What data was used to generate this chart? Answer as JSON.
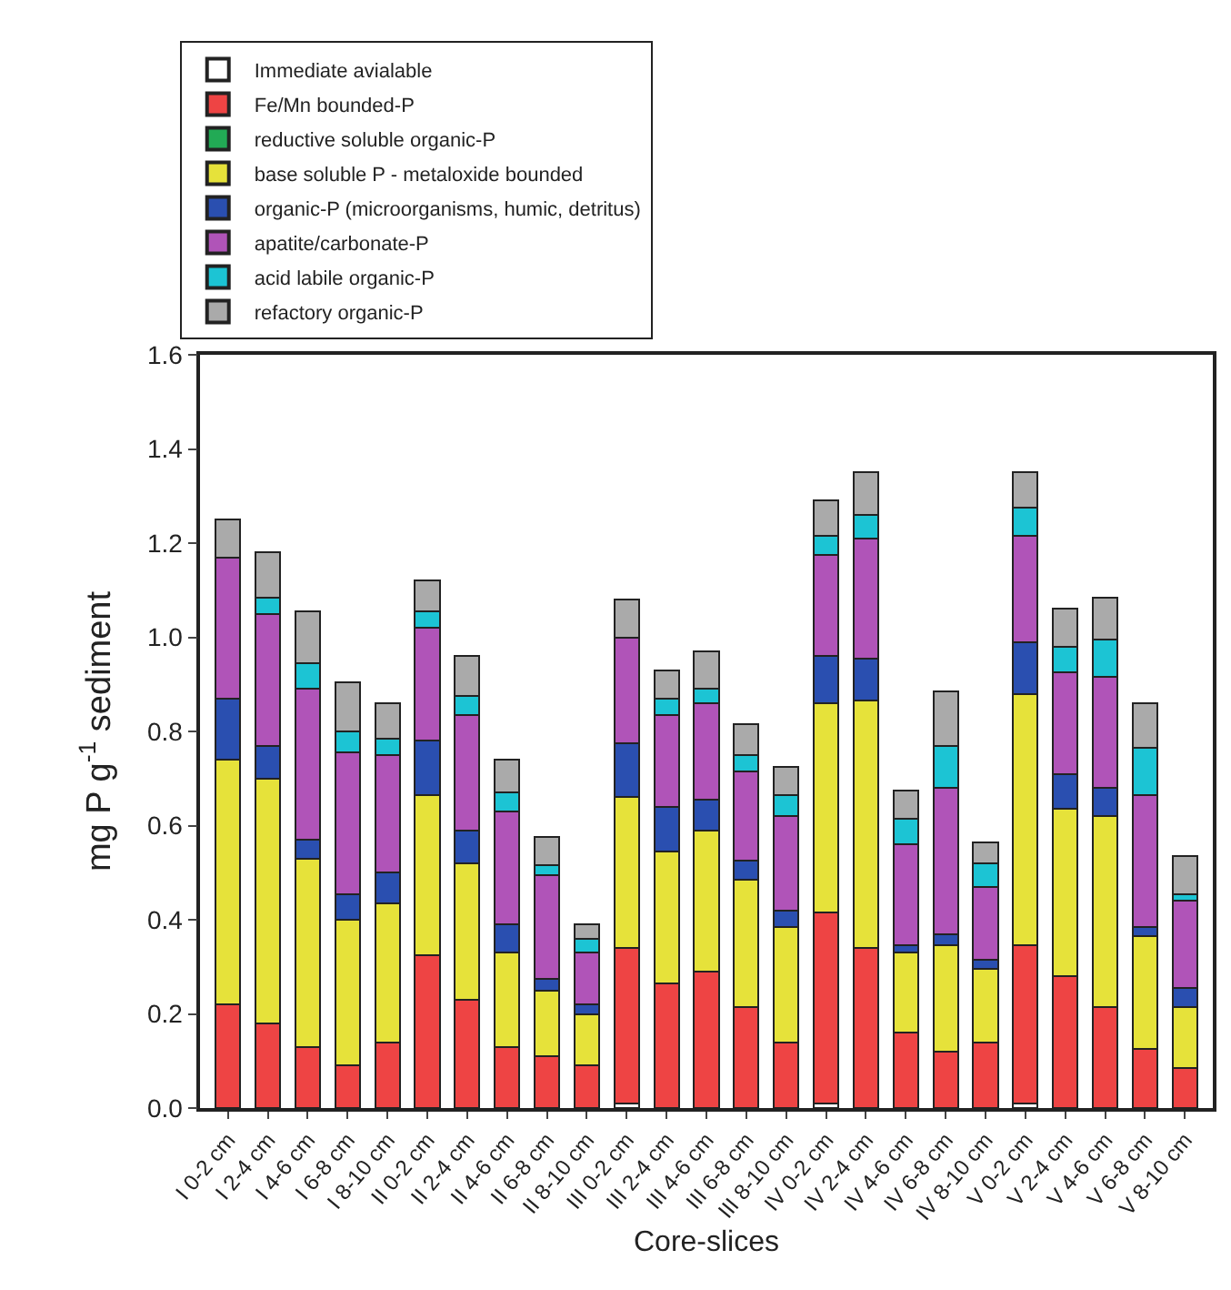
{
  "chart_data": {
    "type": "bar",
    "stacked": true,
    "xlabel": "Core-slices",
    "ylabel": "mg P g$^{-1}$ sediment",
    "categories": [
      "I 0-2 cm",
      "I 2-4 cm",
      "I 4-6 cm",
      "I 6-8 cm",
      "I 8-10 cm",
      "II 0-2 cm",
      "II 2-4 cm",
      "II 4-6 cm",
      "II 6-8 cm",
      "II 8-10 cm",
      "III 0-2 cm",
      "III 2-4 cm",
      "III 4-6 cm",
      "III 6-8 cm",
      "III 8-10 cm",
      "IV 0-2 cm",
      "IV 2-4 cm",
      "IV 4-6 cm",
      "IV 6-8 cm",
      "IV 8-10 cm",
      "V 0-2 cm",
      "V 2-4 cm",
      "V 4-6 cm",
      "V 6-8 cm",
      "V 8-10 cm"
    ],
    "series": [
      {
        "name": "Immediate avialable",
        "color": "#ffffff",
        "values": [
          0,
          0,
          0,
          0,
          0,
          0,
          0,
          0,
          0,
          0,
          0.01,
          0,
          0,
          0,
          0,
          0.01,
          0,
          0,
          0,
          0,
          0.01,
          0,
          0,
          0,
          0
        ]
      },
      {
        "name": "Fe/Mn bounded-P",
        "color": "#ee4444",
        "values": [
          0.22,
          0.18,
          0.13,
          0.09,
          0.14,
          0.325,
          0.23,
          0.13,
          0.11,
          0.09,
          0.33,
          0.265,
          0.29,
          0.215,
          0.14,
          0.405,
          0.34,
          0.16,
          0.12,
          0.14,
          0.335,
          0.28,
          0.215,
          0.125,
          0.085
        ]
      },
      {
        "name": "reductive soluble organic-P",
        "color": "#22aa55",
        "values": [
          0,
          0,
          0,
          0,
          0,
          0,
          0,
          0,
          0,
          0,
          0,
          0,
          0,
          0,
          0,
          0,
          0,
          0,
          0,
          0,
          0,
          0,
          0,
          0,
          0
        ]
      },
      {
        "name": "base soluble P - metaloxide bounded",
        "color": "#e6e23a",
        "values": [
          0.52,
          0.52,
          0.4,
          0.31,
          0.295,
          0.34,
          0.29,
          0.2,
          0.14,
          0.11,
          0.32,
          0.28,
          0.3,
          0.27,
          0.245,
          0.445,
          0.525,
          0.17,
          0.225,
          0.155,
          0.535,
          0.355,
          0.405,
          0.24,
          0.13
        ]
      },
      {
        "name": "organic-P (microorganisms, humic, detritus)",
        "color": "#2a4fb0",
        "values": [
          0.13,
          0.07,
          0.04,
          0.055,
          0.065,
          0.115,
          0.07,
          0.06,
          0.025,
          0.02,
          0.115,
          0.095,
          0.065,
          0.04,
          0.035,
          0.1,
          0.09,
          0.015,
          0.025,
          0.02,
          0.11,
          0.075,
          0.06,
          0.02,
          0.04
        ]
      },
      {
        "name": "apatite/carbonate-P",
        "color": "#b054b8",
        "values": [
          0.3,
          0.28,
          0.32,
          0.3,
          0.25,
          0.24,
          0.245,
          0.24,
          0.22,
          0.11,
          0.225,
          0.195,
          0.205,
          0.19,
          0.2,
          0.215,
          0.255,
          0.215,
          0.31,
          0.155,
          0.225,
          0.215,
          0.235,
          0.28,
          0.185
        ]
      },
      {
        "name": "acid labile organic-P",
        "color": "#1cc4d4",
        "values": [
          0,
          0.035,
          0.055,
          0.045,
          0.035,
          0.035,
          0.04,
          0.04,
          0.02,
          0.03,
          0,
          0.035,
          0.03,
          0.035,
          0.045,
          0.04,
          0.05,
          0.055,
          0.09,
          0.05,
          0.06,
          0.055,
          0.08,
          0.1,
          0.015
        ]
      },
      {
        "name": "refactory organic-P",
        "color": "#aaaaaa",
        "values": [
          0.08,
          0.095,
          0.11,
          0.105,
          0.075,
          0.065,
          0.085,
          0.07,
          0.06,
          0.03,
          0.08,
          0.06,
          0.08,
          0.065,
          0.06,
          0.075,
          0.09,
          0.06,
          0.115,
          0.045,
          0.075,
          0.08,
          0.09,
          0.095,
          0.08
        ]
      }
    ],
    "ylim": [
      0,
      1.6
    ],
    "yticks": [
      "0.0",
      0.2,
      0.4,
      0.6,
      0.8,
      "1.0",
      1.2,
      1.4,
      1.6
    ],
    "legend": "top left"
  }
}
